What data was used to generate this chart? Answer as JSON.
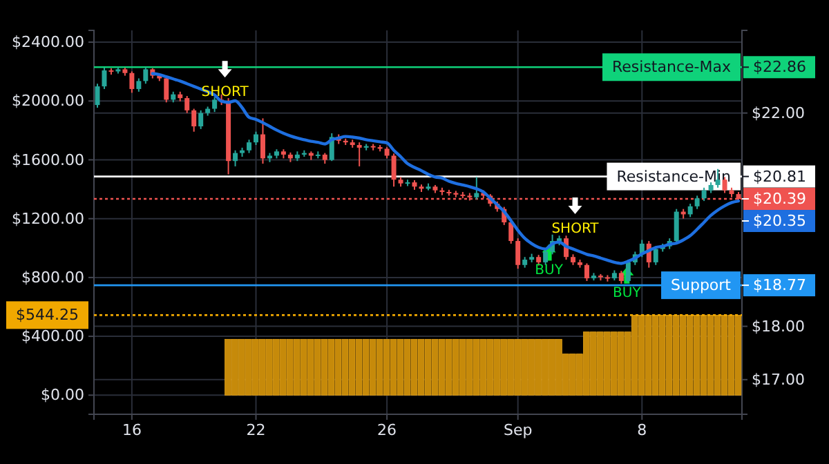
{
  "chart_data": {
    "type": "candlestick",
    "categories": [
      null,
      null,
      null,
      null,
      null,
      "16",
      null,
      null,
      null,
      null,
      null,
      null,
      null,
      null,
      null,
      null,
      null,
      null,
      null,
      null,
      null,
      null,
      null,
      "22",
      null,
      null,
      null,
      null,
      null,
      null,
      null,
      null,
      null,
      null,
      null,
      null,
      null,
      null,
      null,
      null,
      null,
      null,
      "26",
      null,
      null,
      null,
      null,
      null,
      null,
      null,
      null,
      null,
      null,
      null,
      null,
      null,
      null,
      null,
      null,
      null,
      null,
      "Sep",
      null,
      null,
      null,
      null,
      null,
      null,
      null,
      null,
      null,
      null,
      null,
      null,
      null,
      null,
      null,
      null,
      null,
      "8",
      null,
      null,
      null,
      null,
      null,
      null,
      null,
      null,
      null,
      null,
      null,
      null,
      null,
      null
    ],
    "ylim": [
      -130,
      2480
    ],
    "yticks": [
      {
        "value": 0,
        "label": "$0.00"
      },
      {
        "value": 400,
        "label": "$400.00"
      },
      {
        "value": 800,
        "label": "$800.00"
      },
      {
        "value": 1200,
        "label": "$1200.00"
      },
      {
        "value": 1600,
        "label": "$1600.00"
      },
      {
        "value": 2000,
        "label": "$2000.00"
      },
      {
        "value": 2400,
        "label": "$2400.00"
      }
    ],
    "y2lim": [
      16.35,
      23.55
    ],
    "y2ticks": [
      {
        "value": 17,
        "label": "$17.00"
      },
      {
        "value": 18,
        "label": "$18.00"
      },
      {
        "value": 18.77,
        "label": "$18.77"
      },
      {
        "value": 20.39,
        "label": "$20.39"
      },
      {
        "value": 20.81,
        "label": "$20.81"
      },
      {
        "value": 22,
        "label": "$22.00"
      },
      {
        "value": 22.86,
        "label": "$22.86"
      }
    ],
    "grid": true,
    "series": [
      {
        "axis": "y2",
        "colors": [
          "#26a69a",
          "#26a69a",
          "#ef5350",
          "#26a69a",
          "#ef5350",
          "#ef5350",
          "#26a69a",
          "#26a69a",
          "#ef5350",
          "#ef5350",
          "#ef5350",
          "#26a69a",
          "#ef5350",
          "#ef5350",
          "#ef5350",
          "#26a69a",
          "#26a69a",
          "#26a69a",
          "#ef5350",
          "#ef5350",
          "#26a69a",
          "#26a69a",
          "#26a69a",
          "#26a69a",
          "#ef5350",
          "#26a69a",
          "#26a69a",
          "#ef5350",
          "#ef5350",
          "#26a69a",
          "#26a69a",
          "#ef5350",
          "#26a69a",
          "#ef5350",
          "#26a69a",
          "#ef5350",
          "#ef5350",
          "#ef5350",
          "#ef5350",
          "#26a69a",
          "#ef5350",
          "#ef5350",
          "#ef5350",
          "#ef5350",
          "#ef5350",
          "#26a69a",
          "#ef5350",
          "#ef5350",
          "#26a69a",
          "#ef5350",
          "#ef5350",
          "#ef5350",
          "#ef5350",
          "#ef5350",
          "#ef5350",
          "#26a69a",
          "#ef5350",
          "#ef5350",
          "#ef5350",
          "#ef5350",
          "#ef5350",
          "#ef5350",
          "#26a69a",
          "#26a69a",
          "#ef5350",
          "#26a69a",
          "#26a69a",
          "#26a69a",
          "#ef5350",
          "#ef5350",
          "#ef5350",
          "#ef5350",
          "#26a69a",
          "#ef5350",
          "#ef5350",
          "#26a69a",
          "#ef5350",
          "#26a69a",
          "#26a69a",
          "#26a69a",
          "#ef5350",
          "#26a69a",
          "#26a69a",
          "#26a69a",
          "#26a69a",
          "#ef5350",
          "#26a69a",
          "#26a69a",
          "#26a69a",
          "#26a69a",
          "#26a69a",
          "#ef5350",
          "#ef5350",
          "#ef5350"
        ],
        "ohlc": [
          [
            22.15,
            22.55,
            22.1,
            22.5
          ],
          [
            22.5,
            22.85,
            22.45,
            22.8
          ],
          [
            22.8,
            22.84,
            22.72,
            22.78
          ],
          [
            22.78,
            22.86,
            22.74,
            22.82
          ],
          [
            22.82,
            22.85,
            22.7,
            22.75
          ],
          [
            22.75,
            22.78,
            22.38,
            22.45
          ],
          [
            22.45,
            22.65,
            22.4,
            22.6
          ],
          [
            22.6,
            22.86,
            22.55,
            22.82
          ],
          [
            22.82,
            22.84,
            22.65,
            22.7
          ],
          [
            22.7,
            22.74,
            22.6,
            22.65
          ],
          [
            22.65,
            22.68,
            22.2,
            22.25
          ],
          [
            22.25,
            22.4,
            22.2,
            22.35
          ],
          [
            22.35,
            22.4,
            22.22,
            22.28
          ],
          [
            22.28,
            22.32,
            22.0,
            22.05
          ],
          [
            22.05,
            22.08,
            21.65,
            21.75
          ],
          [
            21.75,
            22.05,
            21.7,
            22.0
          ],
          [
            22.0,
            22.12,
            21.95,
            22.08
          ],
          [
            22.08,
            22.3,
            22.02,
            22.25
          ],
          [
            22.25,
            22.35,
            22.15,
            22.22
          ],
          [
            22.22,
            22.28,
            20.85,
            21.1
          ],
          [
            21.1,
            21.3,
            21.0,
            21.25
          ],
          [
            21.25,
            21.35,
            21.18,
            21.3
          ],
          [
            21.3,
            21.5,
            21.25,
            21.45
          ],
          [
            21.45,
            21.65,
            21.4,
            21.6
          ],
          [
            21.6,
            21.9,
            21.05,
            21.15
          ],
          [
            21.15,
            21.25,
            21.08,
            21.2
          ],
          [
            21.2,
            21.32,
            21.15,
            21.28
          ],
          [
            21.28,
            21.32,
            21.15,
            21.22
          ],
          [
            21.22,
            21.26,
            21.08,
            21.15
          ],
          [
            21.15,
            21.28,
            21.1,
            21.22
          ],
          [
            21.22,
            21.3,
            21.18,
            21.25
          ],
          [
            21.25,
            21.28,
            21.12,
            21.2
          ],
          [
            21.2,
            21.28,
            21.15,
            21.22
          ],
          [
            21.22,
            21.25,
            21.05,
            21.12
          ],
          [
            21.12,
            21.62,
            21.1,
            21.55
          ],
          [
            21.55,
            21.6,
            21.42,
            21.48
          ],
          [
            21.48,
            21.52,
            21.4,
            21.45
          ],
          [
            21.45,
            21.5,
            21.35,
            21.4
          ],
          [
            21.4,
            21.45,
            21.0,
            21.35
          ],
          [
            21.35,
            21.42,
            21.3,
            21.38
          ],
          [
            21.38,
            21.42,
            21.3,
            21.36
          ],
          [
            21.36,
            21.4,
            21.28,
            21.33
          ],
          [
            21.33,
            21.36,
            21.15,
            21.2
          ],
          [
            21.2,
            21.24,
            20.62,
            20.75
          ],
          [
            20.75,
            20.8,
            20.62,
            20.68
          ],
          [
            20.68,
            20.75,
            20.63,
            20.7
          ],
          [
            20.7,
            20.74,
            20.56,
            20.62
          ],
          [
            20.62,
            20.66,
            20.52,
            20.58
          ],
          [
            20.58,
            20.68,
            20.55,
            20.62
          ],
          [
            20.62,
            20.65,
            20.5,
            20.55
          ],
          [
            20.55,
            20.6,
            20.46,
            20.52
          ],
          [
            20.52,
            20.56,
            20.45,
            20.5
          ],
          [
            20.5,
            20.54,
            20.42,
            20.47
          ],
          [
            20.47,
            20.52,
            20.4,
            20.45
          ],
          [
            20.45,
            20.5,
            20.36,
            20.42
          ],
          [
            20.42,
            20.8,
            20.38,
            20.5
          ],
          [
            20.5,
            20.55,
            20.4,
            20.45
          ],
          [
            20.45,
            20.48,
            20.25,
            20.3
          ],
          [
            20.3,
            20.34,
            20.15,
            20.2
          ],
          [
            20.2,
            20.24,
            19.9,
            19.95
          ],
          [
            19.95,
            20.0,
            19.55,
            19.6
          ],
          [
            19.6,
            19.65,
            19.08,
            19.15
          ],
          [
            19.15,
            19.3,
            19.1,
            19.25
          ],
          [
            19.25,
            19.36,
            19.2,
            19.3
          ],
          [
            19.3,
            19.34,
            19.14,
            19.2
          ],
          [
            19.2,
            19.45,
            19.15,
            19.4
          ],
          [
            19.4,
            19.72,
            19.35,
            19.6
          ],
          [
            19.6,
            19.7,
            19.52,
            19.65
          ],
          [
            19.65,
            19.7,
            19.25,
            19.3
          ],
          [
            19.3,
            19.35,
            19.15,
            19.2
          ],
          [
            19.2,
            19.25,
            19.1,
            19.15
          ],
          [
            19.15,
            19.18,
            18.85,
            18.9
          ],
          [
            18.9,
            19.0,
            18.86,
            18.95
          ],
          [
            18.95,
            18.98,
            18.86,
            18.92
          ],
          [
            18.92,
            18.96,
            18.84,
            18.9
          ],
          [
            18.9,
            19.05,
            18.86,
            19.0
          ],
          [
            19.0,
            19.04,
            18.8,
            18.85
          ],
          [
            18.85,
            19.25,
            18.82,
            19.2
          ],
          [
            19.2,
            19.4,
            19.15,
            19.35
          ],
          [
            19.35,
            19.62,
            19.3,
            19.55
          ],
          [
            19.55,
            19.6,
            19.1,
            19.2
          ],
          [
            19.2,
            19.5,
            19.15,
            19.45
          ],
          [
            19.45,
            19.55,
            19.4,
            19.5
          ],
          [
            19.5,
            19.65,
            19.45,
            19.6
          ],
          [
            19.6,
            20.2,
            19.55,
            20.15
          ],
          [
            20.15,
            20.2,
            20.02,
            20.1
          ],
          [
            20.1,
            20.3,
            20.05,
            20.25
          ],
          [
            20.25,
            20.45,
            20.2,
            20.4
          ],
          [
            20.4,
            20.6,
            20.35,
            20.55
          ],
          [
            20.55,
            20.7,
            20.5,
            20.65
          ],
          [
            20.65,
            20.95,
            20.6,
            20.75
          ],
          [
            20.75,
            20.8,
            20.5,
            20.55
          ],
          [
            20.55,
            20.6,
            20.42,
            20.48
          ],
          [
            20.48,
            20.52,
            20.36,
            20.39
          ]
        ]
      },
      {
        "type": "line",
        "axis": "y2",
        "color": "#1e6fe0",
        "values": [
          null,
          null,
          null,
          null,
          null,
          null,
          null,
          null,
          22.74,
          22.72,
          22.68,
          22.64,
          22.6,
          22.55,
          22.5,
          22.45,
          22.4,
          22.34,
          22.22,
          22.2,
          22.23,
          22.1,
          21.92,
          21.88,
          21.82,
          21.75,
          21.68,
          21.62,
          21.57,
          21.53,
          21.5,
          21.47,
          21.45,
          21.42,
          21.5,
          21.53,
          21.56,
          21.55,
          21.53,
          21.5,
          21.48,
          21.46,
          21.44,
          21.3,
          21.18,
          21.05,
          20.98,
          20.92,
          20.85,
          20.8,
          20.78,
          20.72,
          20.68,
          20.65,
          20.62,
          20.58,
          20.52,
          20.4,
          20.28,
          20.15,
          19.98,
          19.8,
          19.65,
          19.55,
          19.48,
          19.45,
          19.55,
          19.58,
          19.5,
          19.45,
          19.4,
          19.35,
          19.32,
          19.28,
          19.24,
          19.2,
          19.18,
          19.22,
          19.28,
          19.36,
          19.42,
          19.48,
          19.5,
          19.54,
          19.56,
          19.62,
          19.7,
          19.82,
          19.95,
          20.08,
          20.18,
          20.26,
          20.32,
          20.35
        ]
      },
      {
        "type": "bar",
        "axis": "y",
        "color": "#c68a0a",
        "values": [
          0,
          0,
          0,
          0,
          0,
          0,
          0,
          0,
          0,
          0,
          0,
          0,
          0,
          0,
          0,
          0,
          0,
          0,
          0,
          380,
          380,
          380,
          380,
          380,
          380,
          380,
          380,
          380,
          380,
          380,
          380,
          380,
          380,
          380,
          380,
          380,
          380,
          380,
          380,
          380,
          380,
          380,
          380,
          380,
          380,
          380,
          380,
          380,
          380,
          380,
          380,
          380,
          380,
          380,
          380,
          380,
          380,
          380,
          380,
          380,
          380,
          380,
          380,
          380,
          380,
          380,
          380,
          380,
          280,
          280,
          280,
          430,
          430,
          430,
          430,
          430,
          430,
          430,
          544.25,
          544.25,
          544.25,
          544.25,
          544.25,
          544.25,
          544.25,
          544.25,
          544.25,
          544.25,
          544.25,
          544.25,
          544.25,
          544.25,
          544.25,
          544.25
        ]
      }
    ],
    "ref_lines": [
      {
        "axis": "y2",
        "value": 22.86,
        "label": "Resistance-Max",
        "color": "#0fd27a",
        "line_style": "solid"
      },
      {
        "axis": "y2",
        "value": 20.81,
        "label": "Resistance-Min",
        "color": "#ffffff",
        "line_style": "solid"
      },
      {
        "axis": "y2",
        "value": 20.39,
        "color": "#ef5350",
        "line_style": "dotted"
      },
      {
        "axis": "y2",
        "value": 18.77,
        "label": "Support",
        "color": "#2196f3",
        "line_style": "solid"
      },
      {
        "axis": "y",
        "value": 544.25,
        "label": "$544.25",
        "color": "#f0a800",
        "line_style": "dotted"
      }
    ],
    "annotations": [
      "SHORT",
      "BUY",
      "SHORT",
      "BUY",
      "$20.35"
    ]
  }
}
